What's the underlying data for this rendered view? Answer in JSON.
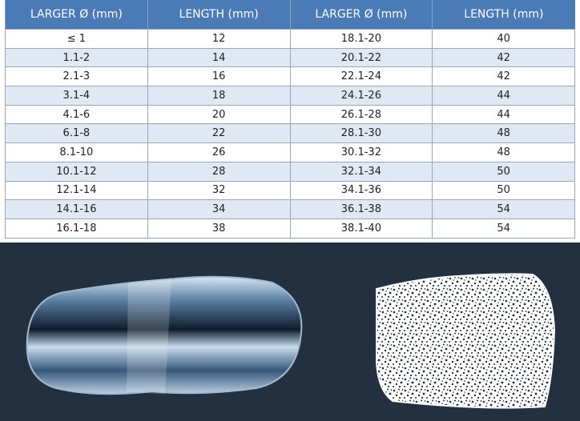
{
  "table": {
    "headers": [
      "LARGER Ø (mm)",
      "LENGTH (mm)",
      "LARGER Ø (mm)",
      "LENGTH (mm)"
    ],
    "rows": [
      [
        "≤ 1",
        "12",
        "18.1-20",
        "40"
      ],
      [
        "1.1-2",
        "14",
        "20.1-22",
        "42"
      ],
      [
        "2.1-3",
        "16",
        "22.1-24",
        "42"
      ],
      [
        "3.1-4",
        "18",
        "24.1-26",
        "44"
      ],
      [
        "4.1-6",
        "20",
        "26.1-28",
        "44"
      ],
      [
        "6.1-8",
        "22",
        "28.1-30",
        "48"
      ],
      [
        "8.1-10",
        "26",
        "30.1-32",
        "48"
      ],
      [
        "10.1-12",
        "28",
        "32.1-34",
        "50"
      ],
      [
        "12.1-14",
        "32",
        "34.1-36",
        "50"
      ],
      [
        "14.1-16",
        "34",
        "36.1-38",
        "54"
      ],
      [
        "16.1-18",
        "38",
        "38.1-40",
        "54"
      ]
    ]
  }
}
